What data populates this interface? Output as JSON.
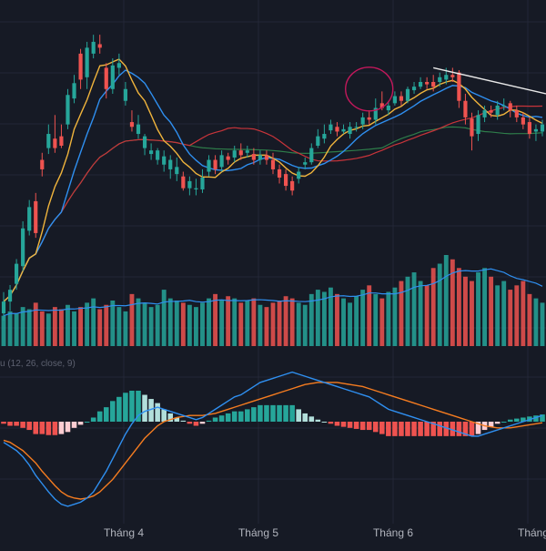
{
  "colors": {
    "background": "#161a25",
    "grid": "#232736",
    "up": "#26a69a",
    "down": "#ef5350",
    "ma_fast": "#2f8ff0",
    "ma_mid": "#f0b43c",
    "ma_slow": "#c8343a",
    "ma_long": "#2e7d4a",
    "macd_line": "#2f8ff0",
    "signal_line": "#f57c20",
    "hist_up_strong": "#26a69a",
    "hist_up_weak": "#b2dfdb",
    "hist_down_strong": "#ef5350",
    "hist_down_weak": "#ffcdd2",
    "volume_ma": "#2f8ff0",
    "trendline": "#e8e8e8",
    "highlight_circle": "#c2185b",
    "axis_text": "#b2b5be"
  },
  "chart_data": {
    "type": "candlestick",
    "x_labels": [
      "Tháng 4",
      "Tháng 5",
      "Tháng 6",
      "Tháng"
    ],
    "macd_label": "u (12, 26, close, 9)",
    "grid": true,
    "candles": [
      [
        1,
        110,
        120,
        128,
        104
      ],
      [
        2,
        120,
        130,
        134,
        112
      ],
      [
        3,
        135,
        152,
        156,
        130
      ],
      [
        4,
        150,
        182,
        188,
        146
      ],
      [
        5,
        180,
        200,
        206,
        176
      ],
      [
        6,
        205,
        178,
        212,
        174
      ],
      [
        7,
        240,
        232,
        246,
        226
      ],
      [
        8,
        250,
        262,
        270,
        245
      ],
      [
        9,
        258,
        250,
        278,
        246
      ],
      [
        10,
        260,
        252,
        270,
        250
      ],
      [
        11,
        270,
        295,
        300,
        266
      ],
      [
        12,
        292,
        305,
        312,
        288
      ],
      [
        13,
        330,
        308,
        334,
        300
      ],
      [
        14,
        310,
        335,
        340,
        300
      ],
      [
        15,
        330,
        340,
        346,
        326
      ],
      [
        16,
        338,
        335,
        346,
        330
      ],
      [
        17,
        318,
        300,
        322,
        292
      ],
      [
        18,
        300,
        320,
        326,
        296
      ],
      [
        19,
        318,
        322,
        330,
        312
      ],
      [
        20,
        290,
        300,
        306,
        286
      ],
      [
        21,
        272,
        268,
        282,
        264
      ],
      [
        22,
        262,
        270,
        278,
        258
      ],
      [
        23,
        250,
        260,
        262,
        244
      ],
      [
        24,
        245,
        248,
        254,
        240
      ],
      [
        25,
        240,
        248,
        250,
        236
      ],
      [
        26,
        236,
        243,
        248,
        230
      ],
      [
        27,
        232,
        240,
        244,
        224
      ],
      [
        28,
        228,
        234,
        242,
        222
      ],
      [
        29,
        226,
        216,
        230,
        214
      ],
      [
        30,
        216,
        222,
        226,
        210
      ],
      [
        31,
        215,
        216,
        224,
        210
      ],
      [
        32,
        215,
        225,
        232,
        212
      ],
      [
        33,
        230,
        240,
        244,
        226
      ],
      [
        34,
        240,
        232,
        244,
        228
      ],
      [
        35,
        234,
        244,
        248,
        230
      ],
      [
        36,
        243,
        240,
        246,
        236
      ],
      [
        37,
        242,
        248,
        252,
        238
      ],
      [
        38,
        248,
        244,
        254,
        240
      ],
      [
        39,
        246,
        248,
        252,
        242
      ],
      [
        40,
        245,
        240,
        250,
        236
      ],
      [
        41,
        240,
        244,
        248,
        236
      ],
      [
        42,
        244,
        240,
        248,
        236
      ],
      [
        43,
        240,
        232,
        246,
        228
      ],
      [
        44,
        232,
        225,
        236,
        220
      ],
      [
        45,
        228,
        218,
        232,
        214
      ],
      [
        46,
        222,
        214,
        226,
        210
      ],
      [
        47,
        224,
        230,
        234,
        220
      ],
      [
        48,
        236,
        238,
        242,
        232
      ],
      [
        49,
        238,
        250,
        254,
        236
      ],
      [
        50,
        252,
        260,
        266,
        250
      ],
      [
        51,
        258,
        262,
        270,
        254
      ],
      [
        52,
        265,
        270,
        274,
        262
      ],
      [
        53,
        268,
        264,
        272,
        260
      ],
      [
        54,
        264,
        266,
        270,
        262
      ],
      [
        55,
        262,
        268,
        272,
        258
      ],
      [
        56,
        268,
        268,
        272,
        264
      ],
      [
        57,
        270,
        276,
        280,
        266
      ],
      [
        58,
        276,
        274,
        282,
        270
      ],
      [
        59,
        274,
        284,
        292,
        270
      ],
      [
        60,
        288,
        284,
        298,
        282
      ],
      [
        61,
        282,
        286,
        290,
        278
      ],
      [
        62,
        288,
        294,
        298,
        286
      ],
      [
        63,
        294,
        290,
        298,
        286
      ],
      [
        64,
        290,
        300,
        302,
        288
      ],
      [
        65,
        299,
        302,
        306,
        296
      ],
      [
        66,
        302,
        306,
        310,
        300
      ],
      [
        67,
        306,
        304,
        310,
        300
      ],
      [
        68,
        306,
        302,
        312,
        298
      ],
      [
        69,
        306,
        310,
        314,
        302
      ],
      [
        70,
        308,
        312,
        318,
        304
      ],
      [
        71,
        312,
        310,
        318,
        306
      ],
      [
        72,
        314,
        290,
        316,
        284
      ],
      [
        73,
        290,
        276,
        296,
        270
      ],
      [
        74,
        275,
        260,
        280,
        248
      ],
      [
        75,
        262,
        278,
        282,
        256
      ],
      [
        76,
        276,
        282,
        286,
        272
      ],
      [
        77,
        282,
        280,
        286,
        276
      ],
      [
        78,
        278,
        286,
        290,
        274
      ],
      [
        79,
        286,
        286,
        292,
        282
      ],
      [
        80,
        288,
        282,
        290,
        276
      ],
      [
        81,
        282,
        276,
        286,
        272
      ],
      [
        82,
        276,
        270,
        280,
        266
      ],
      [
        83,
        272,
        262,
        276,
        258
      ],
      [
        84,
        264,
        266,
        270,
        256
      ],
      [
        85,
        264,
        270,
        274,
        260
      ]
    ],
    "volume_series": [
      14,
      16,
      15,
      18,
      17,
      20,
      16,
      15,
      18,
      17,
      19,
      16,
      18,
      20,
      22,
      17,
      19,
      21,
      18,
      16,
      24,
      22,
      20,
      18,
      19,
      26,
      22,
      21,
      20,
      19,
      18,
      20,
      22,
      24,
      21,
      23,
      22,
      20,
      21,
      22,
      19,
      18,
      20,
      21,
      23,
      22,
      20,
      19,
      24,
      26,
      25,
      27,
      24,
      22,
      20,
      23,
      26,
      28,
      24,
      22,
      25,
      27,
      30,
      32,
      34,
      30,
      28,
      36,
      38,
      42,
      40,
      36,
      32,
      30,
      34,
      36,
      32,
      28,
      30,
      26,
      28,
      30,
      24,
      22,
      20
    ],
    "macd": [
      -20,
      -24,
      -28,
      -34,
      -42,
      -52,
      -60,
      -68,
      -75,
      -80,
      -82,
      -80,
      -78,
      -74,
      -68,
      -58,
      -48,
      -36,
      -24,
      -12,
      -2,
      6,
      10,
      12,
      14,
      12,
      10,
      8,
      6,
      4,
      2,
      4,
      8,
      12,
      16,
      20,
      24,
      26,
      30,
      34,
      38,
      40,
      42,
      44,
      46,
      48,
      46,
      44,
      42,
      40,
      38,
      36,
      34,
      32,
      30,
      28,
      26,
      24,
      20,
      16,
      12,
      10,
      8,
      6,
      4,
      2,
      0,
      -2,
      -4,
      -6,
      -8,
      -10,
      -12,
      -14,
      -14,
      -12,
      -10,
      -8,
      -6,
      -4,
      -2,
      0,
      2,
      4,
      6
    ],
    "signal": [
      -18,
      -20,
      -24,
      -28,
      -34,
      -40,
      -48,
      -55,
      -62,
      -68,
      -72,
      -74,
      -75,
      -74,
      -72,
      -68,
      -62,
      -56,
      -48,
      -40,
      -32,
      -24,
      -16,
      -10,
      -4,
      0,
      2,
      4,
      5,
      6,
      6,
      6,
      7,
      8,
      10,
      12,
      14,
      16,
      18,
      20,
      22,
      24,
      26,
      28,
      30,
      32,
      34,
      36,
      37,
      38,
      38,
      38,
      38,
      37,
      36,
      35,
      34,
      32,
      30,
      28,
      26,
      24,
      22,
      20,
      18,
      16,
      14,
      12,
      10,
      8,
      6,
      4,
      2,
      0,
      -2,
      -4,
      -5,
      -6,
      -6,
      -6,
      -5,
      -4,
      -3,
      -2,
      -1
    ]
  }
}
